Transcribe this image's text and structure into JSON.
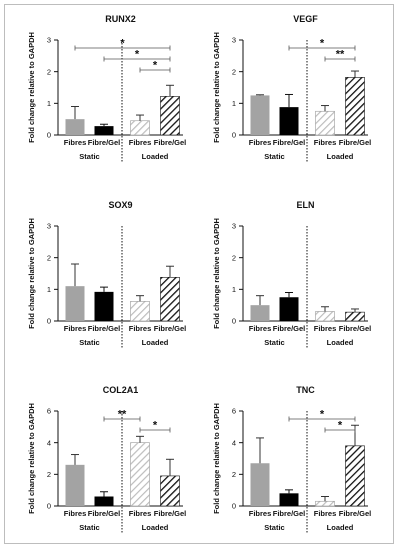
{
  "colors": {
    "Fibres": "#a3a3a3",
    "Fibre/Gel": "#000000",
    "loaded_fibres_hatch": "#bdbdbd",
    "loaded_fibregel_hatch": "#111111"
  },
  "chart_data": [
    {
      "type": "bar",
      "title": "RUNX2",
      "ylabel": "Fold change relative to GAPDH",
      "ylim": [
        0,
        3
      ],
      "yticks": [
        "0",
        "1",
        "2",
        "3"
      ],
      "categories": [
        "Fibres",
        "Fibre/Gel",
        "Fibres",
        "Fibre/Gel"
      ],
      "groups": [
        "Static",
        "Loaded"
      ],
      "values": [
        0.5,
        0.28,
        0.45,
        1.22
      ],
      "errors": [
        0.4,
        0.06,
        0.18,
        0.35
      ],
      "significance": [
        {
          "from": 0,
          "to": 3,
          "label": "*"
        },
        {
          "from": 1,
          "to": 3,
          "label": "*"
        },
        {
          "from": 2,
          "to": 3,
          "label": "*"
        }
      ]
    },
    {
      "type": "bar",
      "title": "VEGF",
      "ylabel": "Fold change relative to GAPDH",
      "ylim": [
        0,
        3
      ],
      "yticks": [
        "0",
        "1",
        "2",
        "3"
      ],
      "categories": [
        "Fibres",
        "Fibre/Gel",
        "Fibres",
        "Fibre/Gel"
      ],
      "groups": [
        "Static",
        "Loaded"
      ],
      "values": [
        1.25,
        0.88,
        0.75,
        1.82
      ],
      "errors": [
        0.02,
        0.4,
        0.18,
        0.2
      ],
      "significance": [
        {
          "from": 1,
          "to": 3,
          "label": "*"
        },
        {
          "from": 2,
          "to": 3,
          "label": "**"
        }
      ]
    },
    {
      "type": "bar",
      "title": "SOX9",
      "ylabel": "Fold change relative to GAPDH",
      "ylim": [
        0,
        3
      ],
      "yticks": [
        "0",
        "1",
        "2",
        "3"
      ],
      "categories": [
        "Fibres",
        "Fibre/Gel",
        "Fibres",
        "Fibre/Gel"
      ],
      "groups": [
        "Static",
        "Loaded"
      ],
      "values": [
        1.1,
        0.92,
        0.62,
        1.38
      ],
      "errors": [
        0.7,
        0.15,
        0.18,
        0.35
      ],
      "significance": []
    },
    {
      "type": "bar",
      "title": "ELN",
      "ylabel": "Fold change relative to GAPDH",
      "ylim": [
        0,
        3
      ],
      "yticks": [
        "0",
        "1",
        "2",
        "3"
      ],
      "categories": [
        "Fibres",
        "Fibre/Gel",
        "Fibres",
        "Fibre/Gel"
      ],
      "groups": [
        "Static",
        "Loaded"
      ],
      "values": [
        0.5,
        0.75,
        0.3,
        0.28
      ],
      "errors": [
        0.3,
        0.15,
        0.15,
        0.1
      ],
      "significance": []
    },
    {
      "type": "bar",
      "title": "COL2A1",
      "ylabel": "Fold change relative to GAPDH",
      "ylim": [
        0,
        6
      ],
      "yticks": [
        "0",
        "2",
        "4",
        "6"
      ],
      "categories": [
        "Fibres",
        "Fibre/Gel",
        "Fibres",
        "Fibre/Gel"
      ],
      "groups": [
        "Static",
        "Loaded"
      ],
      "values": [
        2.6,
        0.6,
        4.0,
        1.9
      ],
      "errors": [
        0.65,
        0.3,
        0.4,
        1.05
      ],
      "significance": [
        {
          "from": 1,
          "to": 2,
          "label": "**"
        },
        {
          "from": 2,
          "to": 3,
          "label": "*"
        }
      ]
    },
    {
      "type": "bar",
      "title": "TNC",
      "ylabel": "Fold change relative to GAPDH",
      "ylim": [
        0,
        6
      ],
      "yticks": [
        "0",
        "2",
        "4",
        "6"
      ],
      "categories": [
        "Fibres",
        "Fibre/Gel",
        "Fibres",
        "Fibre/Gel"
      ],
      "groups": [
        "Static",
        "Loaded"
      ],
      "values": [
        2.7,
        0.8,
        0.3,
        3.8
      ],
      "errors": [
        1.6,
        0.22,
        0.3,
        1.3
      ],
      "significance": [
        {
          "from": 1,
          "to": 3,
          "label": "*"
        },
        {
          "from": 2,
          "to": 3,
          "label": "*"
        }
      ]
    }
  ]
}
